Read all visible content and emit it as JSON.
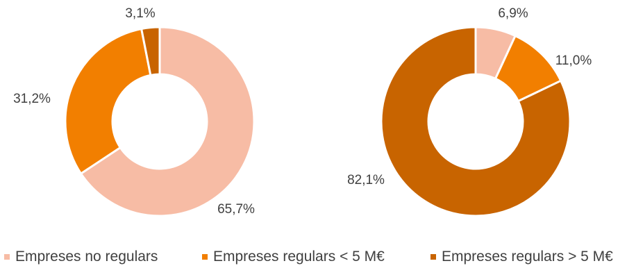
{
  "colors": {
    "no_regulars": "#F7BCA5",
    "regulars_lt5": "#F27F00",
    "regulars_gt5": "#C86400",
    "separator": "#FFFFFF",
    "label_text": "#404040"
  },
  "chart_data": [
    {
      "type": "pie",
      "donut": true,
      "slices": [
        {
          "series": "Empreses no regulars",
          "value": 65.7,
          "label": "65,7%"
        },
        {
          "series": "Empreses regulars < 5 M€",
          "value": 31.2,
          "label": "31,2%"
        },
        {
          "series": "Empreses regulars > 5 M€",
          "value": 3.1,
          "label": "3,1%"
        }
      ]
    },
    {
      "type": "pie",
      "donut": true,
      "slices": [
        {
          "series": "Empreses no regulars",
          "value": 6.9,
          "label": "6,9%"
        },
        {
          "series": "Empreses regulars < 5 M€",
          "value": 11.0,
          "label": "11,0%"
        },
        {
          "series": "Empreses regulars > 5 M€",
          "value": 82.1,
          "label": "82,1%"
        }
      ]
    }
  ],
  "legend": {
    "position": "bottom",
    "items": [
      {
        "label": "Empreses no regulars",
        "color": "#F7BCA5"
      },
      {
        "label": "Empreses regulars < 5 M€",
        "color": "#F27F00"
      },
      {
        "label": "Empreses regulars > 5 M€",
        "color": "#C86400"
      }
    ]
  }
}
